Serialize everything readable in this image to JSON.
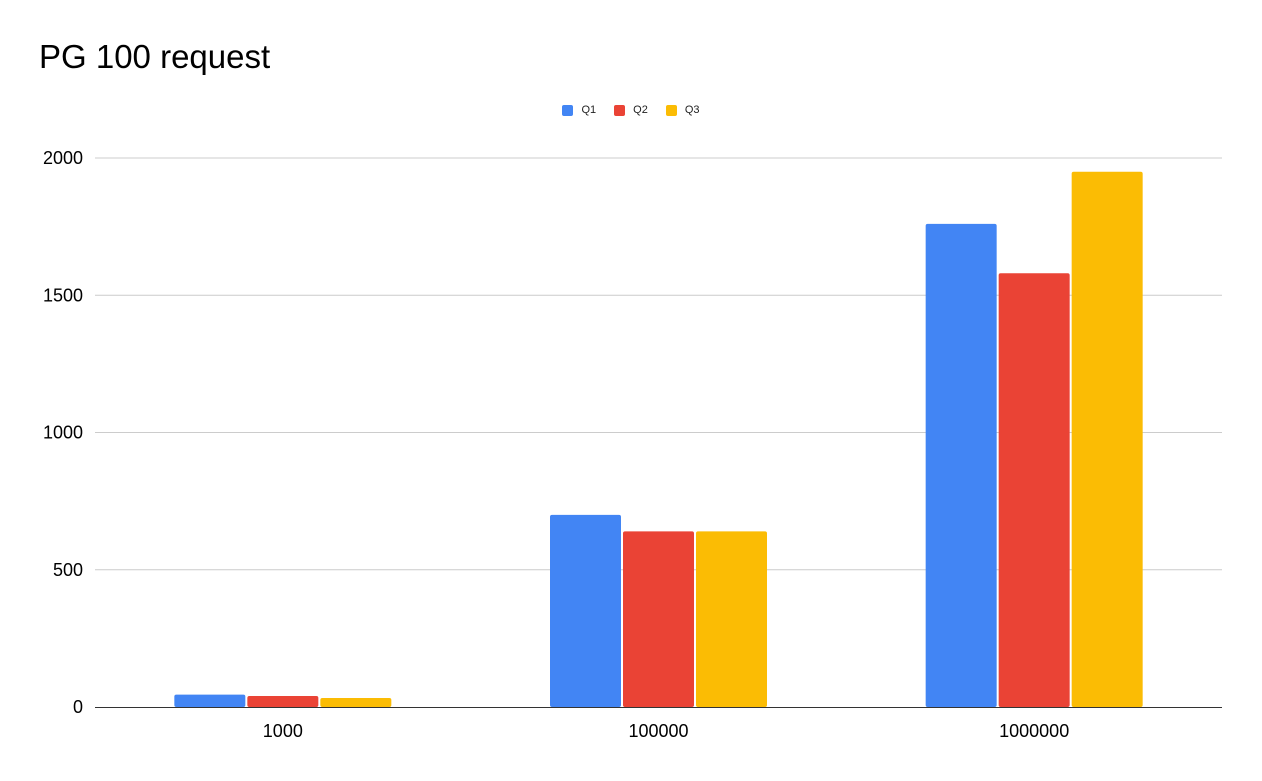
{
  "chart_data": {
    "type": "bar",
    "title": "PG 100 request",
    "xlabel": "",
    "ylabel": "",
    "categories": [
      "1000",
      "100000",
      "1000000"
    ],
    "series": [
      {
        "name": "Q1",
        "color": "#4285f4",
        "values": [
          45,
          700,
          1760
        ]
      },
      {
        "name": "Q2",
        "color": "#ea4335",
        "values": [
          40,
          640,
          1580
        ]
      },
      {
        "name": "Q3",
        "color": "#fbbc04",
        "values": [
          33,
          640,
          1950
        ]
      }
    ],
    "ylim": [
      0,
      2000
    ],
    "yticks": [
      "0",
      "500",
      "1000",
      "1500",
      "2000"
    ],
    "grid": true,
    "legend_position": "top-center"
  }
}
